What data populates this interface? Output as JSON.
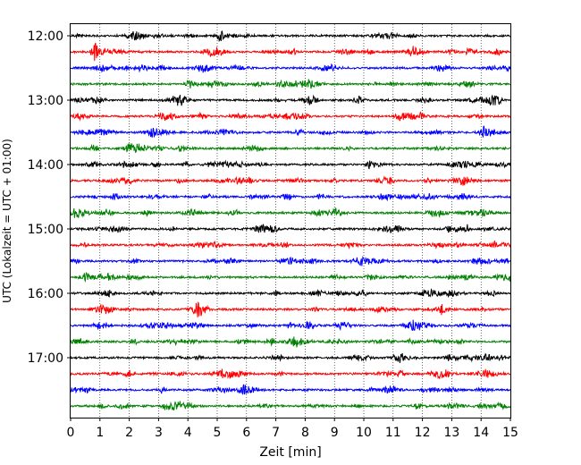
{
  "chart_data": {
    "type": "line",
    "title": "",
    "xlabel": "Zeit  [min]",
    "ylabel": "UTC (Lokalzeit = UTC + 01:00)",
    "xlim": [
      0,
      15
    ],
    "x_ticks": [
      "0",
      "1",
      "2",
      "3",
      "4",
      "5",
      "6",
      "7",
      "8",
      "9",
      "10",
      "11",
      "12",
      "13",
      "14",
      "15"
    ],
    "y_tick_labels": [
      "12:00",
      "13:00",
      "14:00",
      "15:00",
      "16:00",
      "17:00"
    ],
    "grid": "vertical dotted lines at each minute",
    "trace_interval_minutes": 15,
    "trace_colors_cycle": [
      "#000000",
      "#ff0000",
      "#0000ff",
      "#008000"
    ],
    "traces": [
      {
        "start": "12:00"
      },
      {
        "start": "12:15"
      },
      {
        "start": "12:30"
      },
      {
        "start": "12:45"
      },
      {
        "start": "13:00"
      },
      {
        "start": "13:15"
      },
      {
        "start": "13:30"
      },
      {
        "start": "13:45"
      },
      {
        "start": "14:00"
      },
      {
        "start": "14:15"
      },
      {
        "start": "14:30"
      },
      {
        "start": "14:45"
      },
      {
        "start": "15:00"
      },
      {
        "start": "15:15"
      },
      {
        "start": "15:30"
      },
      {
        "start": "15:45"
      },
      {
        "start": "16:00"
      },
      {
        "start": "16:15"
      },
      {
        "start": "16:30"
      },
      {
        "start": "16:45"
      },
      {
        "start": "17:00"
      },
      {
        "start": "17:15"
      },
      {
        "start": "17:30"
      },
      {
        "start": "17:45"
      }
    ],
    "annotations": [
      {
        "trace_start": "12:15",
        "event_minute": 0.8,
        "note": "burst"
      }
    ]
  }
}
